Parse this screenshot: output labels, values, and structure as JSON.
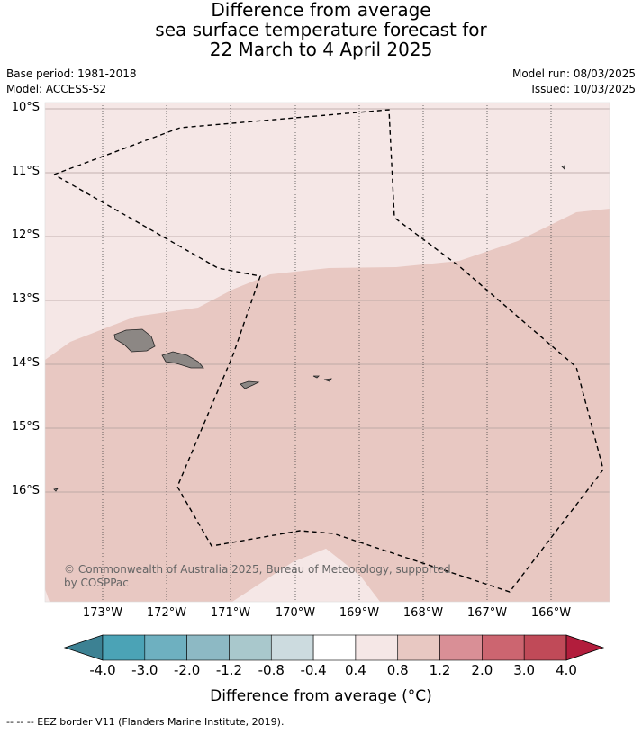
{
  "title": {
    "line1": "Difference from average",
    "line2": "sea surface temperature forecast for",
    "line3": "22 March to 4 April 2025"
  },
  "meta": {
    "base_period": "Base period: 1981-2018",
    "model": "Model: ACCESS-S2",
    "model_run": "Model run: 08/03/2025",
    "issued": "Issued: 10/03/2025"
  },
  "map": {
    "lat_labels": [
      "10°S",
      "11°S",
      "12°S",
      "13°S",
      "14°S",
      "15°S",
      "16°S"
    ],
    "lon_labels": [
      "173°W",
      "172°W",
      "171°W",
      "170°W",
      "169°W",
      "168°W",
      "167°W",
      "166°W"
    ],
    "copyright_line1": "© Commonwealth of Australia 2025, Bureau of Meteorology, supported",
    "copyright_line2": "by COSPPac",
    "region_colors": {
      "band_0_4_to_0_8": "#f5e7e6",
      "band_0_8_to_1_2": "#e8c8c2",
      "land": "#8c8784",
      "eez_border": "#000000"
    }
  },
  "colorbar": {
    "title": "Difference from average (°C)",
    "labels": [
      "-4.0",
      "-3.0",
      "-2.0",
      "-1.2",
      "-0.8",
      "-0.4",
      "0.4",
      "0.8",
      "1.2",
      "2.0",
      "3.0",
      "4.0"
    ],
    "colors": [
      "#3c8193",
      "#4ba3b6",
      "#6eb0c0",
      "#8db9c4",
      "#a9c8cc",
      "#ccdbdf",
      "#ffffff",
      "#f5e7e6",
      "#e8c8c2",
      "#d98f96",
      "#cc6570",
      "#c04a58",
      "#b21d3c"
    ]
  },
  "footnote": "--  --  -- EEZ border V11 (Flanders Marine Institute, 2019)."
}
